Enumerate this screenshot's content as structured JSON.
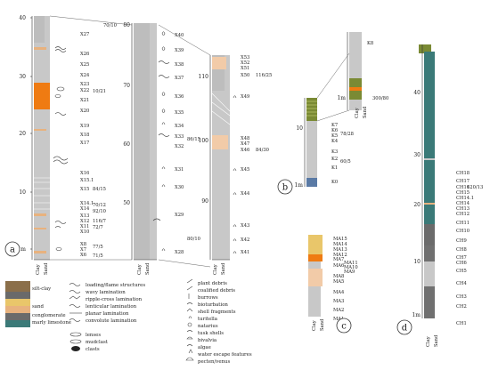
{
  "figure": {
    "panels": [
      {
        "letter": "a",
        "sample_labels": [
          "X27",
          "X26",
          "X25",
          "X24",
          "X23",
          "X22",
          "X21",
          "X20",
          "X19",
          "X18",
          "X17",
          "X16",
          "X15.1",
          "X15",
          "X14.1",
          "X14",
          "X13",
          "X12",
          "X11",
          "X10",
          "X8",
          "X7",
          "X6"
        ],
        "dip_labels": [
          "70/10",
          "10/21",
          "84/15",
          "70/12",
          "92/10",
          "116/7",
          "72/7",
          "77/5",
          "71/5"
        ],
        "ticks": [
          "40",
          "30",
          "20",
          "10",
          "1m"
        ]
      },
      {
        "letter": "a2",
        "sample_labels": [
          "X40",
          "X39",
          "X38",
          "X37",
          "X36",
          "X35",
          "X34",
          "X33",
          "X32",
          "X31",
          "X30",
          "X29",
          "X28"
        ],
        "dip_labels": [
          "86/15",
          "80/10"
        ],
        "ticks": [
          "80",
          "70",
          "60",
          "50"
        ]
      },
      {
        "letter": "a3",
        "sample_labels": [
          "X53",
          "X52",
          "X51",
          "X50",
          "X49",
          "X48",
          "X47",
          "X46",
          "X45",
          "X44",
          "X43",
          "X42",
          "X41"
        ],
        "dip_labels": [
          "116/25",
          "84/30"
        ],
        "ticks": [
          "110",
          "100",
          "90"
        ]
      },
      {
        "letter": "b",
        "sample_labels": [
          "K8",
          "K7",
          "K6",
          "K5",
          "K4",
          "K3",
          "K2",
          "K1",
          "K0"
        ],
        "dip_labels": [
          "300/80",
          "78/28",
          "60/5"
        ],
        "ticks": [
          "10",
          "1m",
          "1m"
        ]
      },
      {
        "letter": "c",
        "sample_labels": [
          "MA15",
          "MA14",
          "MA13",
          "MA12",
          "MA11",
          "MA10",
          "MA9",
          "MA8",
          "MA7",
          "MA6",
          "MA5",
          "MA4",
          "MA3",
          "MA2",
          "MA1"
        ],
        "dip_labels": [],
        "ticks": []
      },
      {
        "letter": "d",
        "sample_labels": [
          "CH18",
          "CH17",
          "CH16",
          "CH15",
          "CH14.1",
          "CH14",
          "CH13",
          "CH12",
          "CH11",
          "CH10",
          "CH9",
          "CH8",
          "CH7",
          "CH6",
          "CH5",
          "CH4",
          "CH3",
          "CH2",
          "CH1"
        ],
        "dip_labels": [
          "120/13"
        ],
        "ticks": [
          "40",
          "30",
          "20",
          "10",
          "1m"
        ]
      }
    ],
    "axis_labels": {
      "left": "Clay",
      "right": "Sand"
    },
    "legend": {
      "lithology": [
        "silt-clay",
        "sand",
        "conglomerate",
        "marly limestone"
      ],
      "structures": [
        "loading/flame structures",
        "wavy lamination",
        "ripple-cross lamination",
        "lenticular lamination",
        "planar lamination",
        "convolute lamination",
        "lenses",
        "mudclast",
        "clasts"
      ],
      "fossils": [
        "plant debris",
        "coalified debris",
        "burrows",
        "bioturbation",
        "shell fragments",
        "turitella",
        "natarius",
        "tusk shells",
        "bivalvia",
        "algae",
        "water escape features",
        "pecten/venus"
      ]
    },
    "colors": {
      "silt_clay_light": "#c8c8c8",
      "silt_clay_dark": "#707070",
      "sand": "#e8b27e",
      "sand_yellow": "#e9c66a",
      "orange": "#ef7b12",
      "conglomerate": "#6b6b6b",
      "marly_limestone": "#3b7a78",
      "olive": "#7a8a34",
      "blue": "#5a7aa5"
    }
  }
}
